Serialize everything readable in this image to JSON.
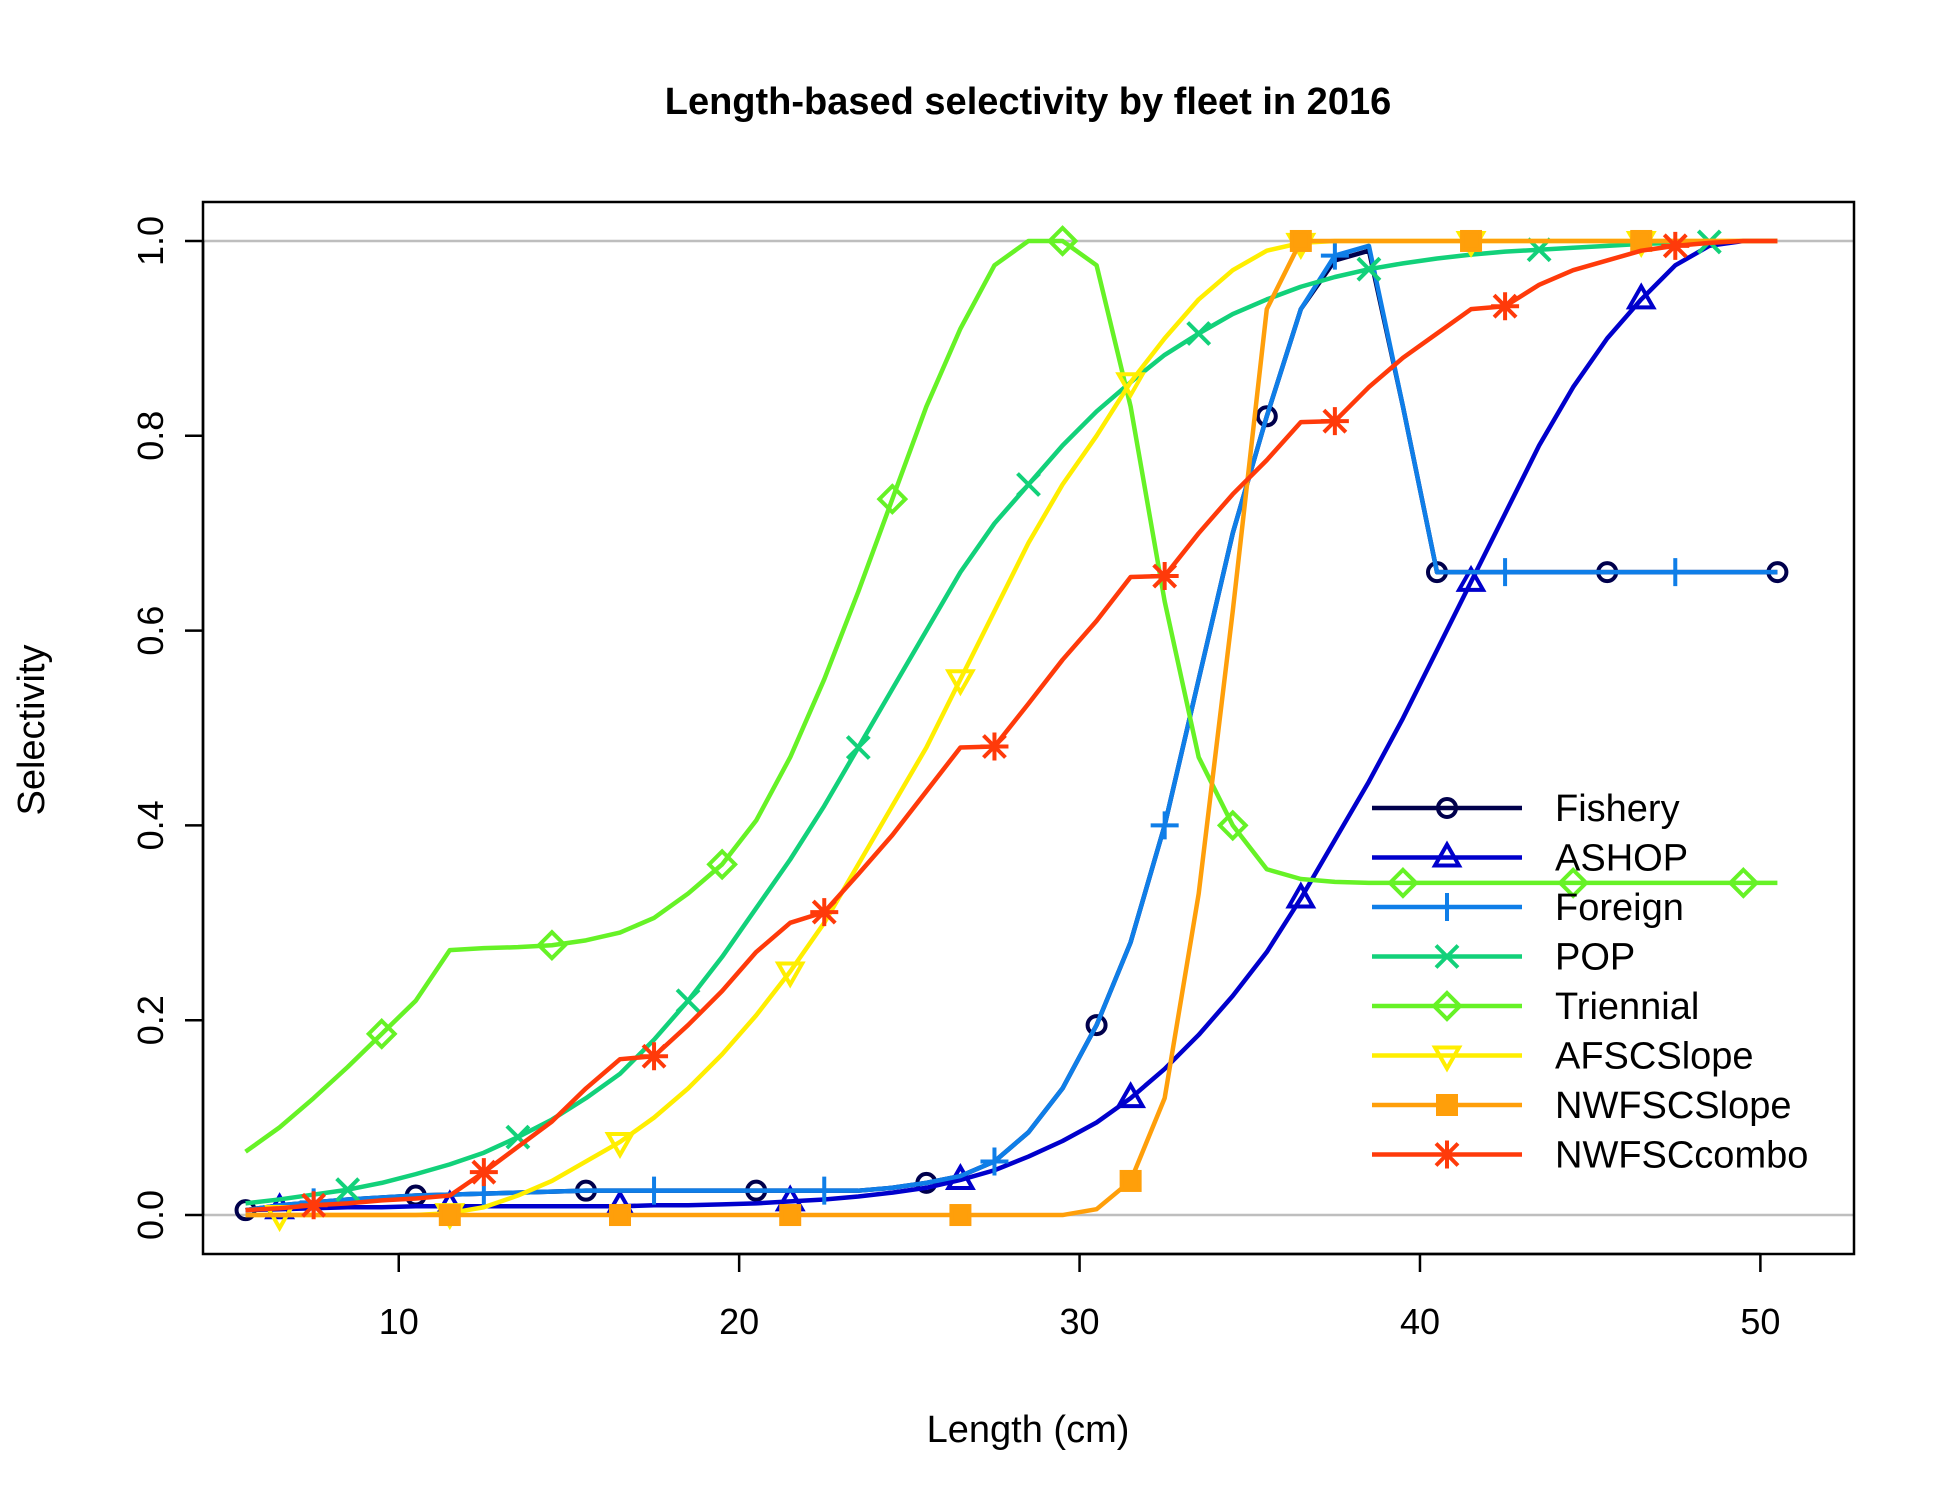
{
  "chart_data": {
    "type": "line",
    "title": "Length-based selectivity by fleet in 2016",
    "xlabel": "Length (cm)",
    "ylabel": "Selectivity",
    "xlim": [
      4.25,
      52.75
    ],
    "ylim": [
      -0.04,
      1.04
    ],
    "xticks": [
      10,
      20,
      30,
      40,
      50
    ],
    "yticks": [
      0.0,
      0.2,
      0.4,
      0.6,
      0.8,
      1.0
    ],
    "xtick_labels": [
      "10",
      "20",
      "30",
      "40",
      "50"
    ],
    "ytick_labels": [
      "0.0",
      "0.2",
      "0.4",
      "0.6",
      "0.8",
      "1.0"
    ],
    "reference_lines": [
      0,
      1
    ],
    "legend_position": "bottom-right",
    "x": [
      5.5,
      6.5,
      7.5,
      8.5,
      9.5,
      10.5,
      11.5,
      12.5,
      13.5,
      14.5,
      15.5,
      16.5,
      17.5,
      18.5,
      19.5,
      20.5,
      21.5,
      22.5,
      23.5,
      24.5,
      25.5,
      26.5,
      27.5,
      28.5,
      29.5,
      30.5,
      31.5,
      32.5,
      33.5,
      34.5,
      35.5,
      36.5,
      37.5,
      38.5,
      39.5,
      40.5,
      41.5,
      42.5,
      43.5,
      44.5,
      45.5,
      46.5,
      47.5,
      48.5,
      49.5,
      50.5
    ],
    "series": [
      {
        "name": "Fishery",
        "color": "#00004c",
        "marker": "circle",
        "values": [
          0.005,
          0.01,
          0.013,
          0.016,
          0.018,
          0.02,
          0.021,
          0.022,
          0.023,
          0.024,
          0.025,
          0.025,
          0.025,
          0.025,
          0.025,
          0.025,
          0.025,
          0.025,
          0.025,
          0.028,
          0.033,
          0.04,
          0.055,
          0.085,
          0.13,
          0.195,
          0.28,
          0.4,
          0.55,
          0.7,
          0.82,
          0.93,
          0.98,
          0.99,
          0.83,
          0.66,
          0.66,
          0.66,
          0.66,
          0.66,
          0.66,
          0.66,
          0.66,
          0.66,
          0.66,
          0.66
        ]
      },
      {
        "name": "ASHOP",
        "color": "#0000cc",
        "marker": "triangle-up",
        "values": [
          0.005,
          0.006,
          0.007,
          0.008,
          0.008,
          0.009,
          0.009,
          0.009,
          0.009,
          0.009,
          0.009,
          0.009,
          0.01,
          0.01,
          0.011,
          0.012,
          0.014,
          0.016,
          0.019,
          0.023,
          0.028,
          0.036,
          0.046,
          0.06,
          0.076,
          0.095,
          0.12,
          0.15,
          0.185,
          0.225,
          0.27,
          0.325,
          0.385,
          0.445,
          0.51,
          0.58,
          0.65,
          0.72,
          0.79,
          0.85,
          0.9,
          0.94,
          0.975,
          0.995,
          1.0,
          1.0
        ]
      },
      {
        "name": "Foreign",
        "color": "#0f7ee8",
        "marker": "plus",
        "values": [
          0.005,
          0.01,
          0.013,
          0.016,
          0.018,
          0.02,
          0.021,
          0.022,
          0.023,
          0.024,
          0.025,
          0.025,
          0.025,
          0.025,
          0.025,
          0.025,
          0.025,
          0.025,
          0.025,
          0.028,
          0.033,
          0.04,
          0.055,
          0.085,
          0.13,
          0.195,
          0.28,
          0.4,
          0.55,
          0.7,
          0.82,
          0.93,
          0.985,
          0.995,
          0.83,
          0.66,
          0.66,
          0.66,
          0.66,
          0.66,
          0.66,
          0.66,
          0.66,
          0.66,
          0.66,
          0.66
        ]
      },
      {
        "name": "POP",
        "color": "#12d17a",
        "marker": "cross",
        "values": [
          0.012,
          0.016,
          0.021,
          0.026,
          0.033,
          0.042,
          0.052,
          0.064,
          0.08,
          0.098,
          0.12,
          0.145,
          0.18,
          0.22,
          0.265,
          0.315,
          0.365,
          0.42,
          0.48,
          0.54,
          0.6,
          0.66,
          0.71,
          0.75,
          0.79,
          0.825,
          0.855,
          0.883,
          0.905,
          0.925,
          0.94,
          0.953,
          0.963,
          0.971,
          0.977,
          0.982,
          0.986,
          0.989,
          0.991,
          0.993,
          0.995,
          0.997,
          0.998,
          0.999,
          1.0,
          1.0
        ]
      },
      {
        "name": "Triennial",
        "color": "#66f226",
        "marker": "diamond",
        "values": [
          0.065,
          0.09,
          0.12,
          0.152,
          0.186,
          0.22,
          0.272,
          0.274,
          0.275,
          0.277,
          0.282,
          0.29,
          0.305,
          0.33,
          0.36,
          0.405,
          0.47,
          0.55,
          0.64,
          0.735,
          0.83,
          0.91,
          0.975,
          1.0,
          1.0,
          0.975,
          0.83,
          0.63,
          0.47,
          0.4,
          0.355,
          0.345,
          0.342,
          0.341,
          0.341,
          0.341,
          0.341,
          0.341,
          0.341,
          0.341,
          0.341,
          0.341,
          0.341,
          0.341,
          0.341,
          0.341
        ]
      },
      {
        "name": "AFSCSlope",
        "color": "#ffee00",
        "marker": "triangle-down",
        "values": [
          0.0,
          0.0,
          0.0,
          0.0,
          0.0,
          0.0,
          0.002,
          0.008,
          0.02,
          0.035,
          0.055,
          0.075,
          0.1,
          0.13,
          0.165,
          0.205,
          0.25,
          0.3,
          0.36,
          0.42,
          0.48,
          0.55,
          0.62,
          0.69,
          0.75,
          0.8,
          0.855,
          0.9,
          0.94,
          0.97,
          0.99,
          0.998,
          1.0,
          1.0,
          1.0,
          1.0,
          1.0,
          1.0,
          1.0,
          1.0,
          1.0,
          1.0,
          1.0,
          1.0,
          1.0,
          1.0
        ]
      },
      {
        "name": "NWFSCSlope",
        "color": "#ff9f0a",
        "marker": "square",
        "values": [
          0.0,
          0.0,
          0.0,
          0.0,
          0.0,
          0.0,
          0.0,
          0.0,
          0.0,
          0.0,
          0.0,
          0.0,
          0.0,
          0.0,
          0.0,
          0.0,
          0.0,
          0.0,
          0.0,
          0.0,
          0.0,
          0.0,
          0.0,
          0.0,
          0.0,
          0.006,
          0.035,
          0.12,
          0.33,
          0.62,
          0.93,
          1.0,
          1.0,
          1.0,
          1.0,
          1.0,
          1.0,
          1.0,
          1.0,
          1.0,
          1.0,
          1.0,
          1.0,
          1.0,
          1.0,
          1.0
        ]
      },
      {
        "name": "NWFSCcombo",
        "color": "#ff3a0a",
        "marker": "asterisk",
        "values": [
          0.005,
          0.007,
          0.01,
          0.012,
          0.015,
          0.017,
          0.02,
          0.044,
          0.07,
          0.096,
          0.13,
          0.16,
          0.163,
          0.195,
          0.23,
          0.27,
          0.3,
          0.311,
          0.35,
          0.39,
          0.435,
          0.48,
          0.481,
          0.525,
          0.57,
          0.61,
          0.655,
          0.656,
          0.7,
          0.74,
          0.775,
          0.814,
          0.815,
          0.85,
          0.88,
          0.905,
          0.93,
          0.933,
          0.955,
          0.97,
          0.98,
          0.99,
          0.995,
          0.998,
          1.0,
          1.0
        ]
      }
    ]
  }
}
